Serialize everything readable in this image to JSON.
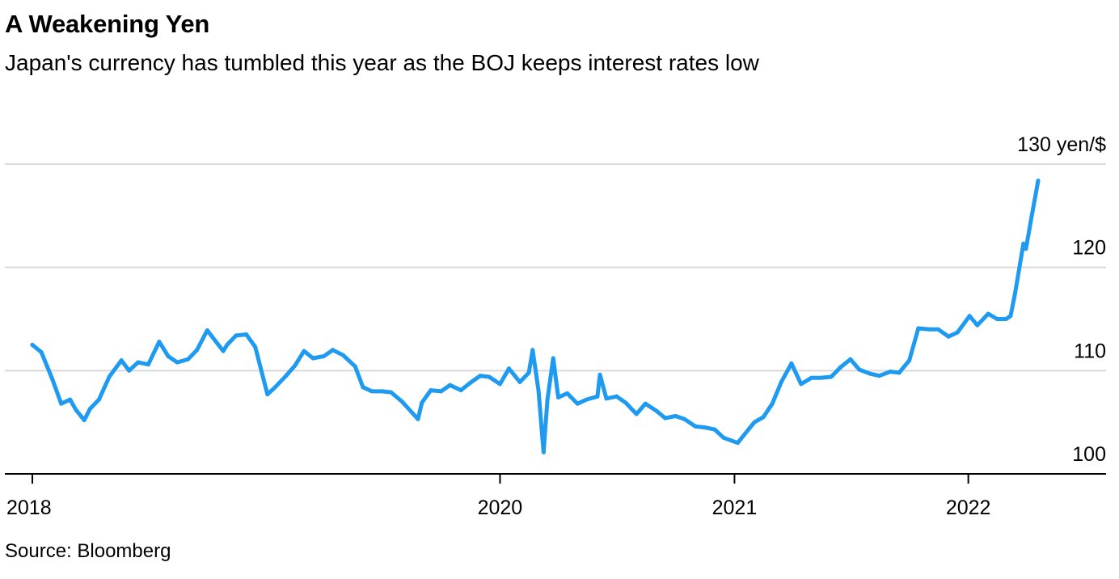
{
  "header": {
    "title": "A Weakening Yen",
    "subtitle": "Japan's currency has tumbled this year as the BOJ keeps interest rates low"
  },
  "footer": {
    "source": "Source: Bloomberg"
  },
  "colors": {
    "line": "#1e9bf0",
    "grid": "#d9d9d9",
    "axis": "#000000"
  },
  "chart_data": {
    "type": "line",
    "title": "A Weakening Yen",
    "subtitle": "Japan's currency has tumbled this year as the BOJ keeps interest rates low",
    "unit": "yen/$",
    "xlabel": "",
    "ylabel": "",
    "x_ticks": [
      {
        "label": "2018",
        "value": "2018-01-01"
      },
      {
        "label": "2020",
        "value": "2020-01-01"
      },
      {
        "label": "2021",
        "value": "2021-01-01"
      },
      {
        "label": "2022",
        "value": "2022-01-01"
      }
    ],
    "y_ticks": [
      {
        "label": "100",
        "value": 100
      },
      {
        "label": "110",
        "value": 110
      },
      {
        "label": "120",
        "value": 120
      },
      {
        "label": "130 yen/$",
        "value": 130
      }
    ],
    "ylim": [
      100,
      130
    ],
    "xlim": [
      "2018-01-01",
      "2022-04-20"
    ],
    "grid": true,
    "series": [
      {
        "x": [
          "2018-01-01",
          "2018-01-15",
          "2018-02-01",
          "2018-02-15",
          "2018-03-01",
          "2018-03-10",
          "2018-03-23",
          "2018-04-01",
          "2018-04-15",
          "2018-05-01",
          "2018-05-20",
          "2018-06-01",
          "2018-06-15",
          "2018-07-01",
          "2018-07-18",
          "2018-08-01",
          "2018-08-15",
          "2018-09-01",
          "2018-09-15",
          "2018-10-01",
          "2018-10-26",
          "2018-11-01",
          "2018-11-15",
          "2018-12-01",
          "2018-12-15",
          "2019-01-03",
          "2019-01-15",
          "2019-02-01",
          "2019-02-15",
          "2019-03-01",
          "2019-03-15",
          "2019-04-01",
          "2019-04-15",
          "2019-05-01",
          "2019-05-20",
          "2019-06-01",
          "2019-06-15",
          "2019-07-01",
          "2019-07-15",
          "2019-08-01",
          "2019-08-26",
          "2019-09-01",
          "2019-09-15",
          "2019-10-01",
          "2019-10-15",
          "2019-11-01",
          "2019-11-15",
          "2019-12-01",
          "2019-12-15",
          "2020-01-01",
          "2020-01-15",
          "2020-02-01",
          "2020-02-15",
          "2020-02-21",
          "2020-03-01",
          "2020-03-09",
          "2020-03-15",
          "2020-03-24",
          "2020-04-01",
          "2020-04-15",
          "2020-05-01",
          "2020-05-15",
          "2020-06-01",
          "2020-06-05",
          "2020-06-15",
          "2020-07-01",
          "2020-07-15",
          "2020-08-01",
          "2020-08-15",
          "2020-09-01",
          "2020-09-15",
          "2020-10-01",
          "2020-10-15",
          "2020-11-01",
          "2020-11-15",
          "2020-12-01",
          "2020-12-15",
          "2021-01-06",
          "2021-01-15",
          "2021-02-01",
          "2021-02-15",
          "2021-03-01",
          "2021-03-15",
          "2021-03-31",
          "2021-04-15",
          "2021-05-01",
          "2021-05-15",
          "2021-06-01",
          "2021-06-15",
          "2021-07-01",
          "2021-07-15",
          "2021-08-01",
          "2021-08-15",
          "2021-09-01",
          "2021-09-15",
          "2021-10-01",
          "2021-10-15",
          "2021-11-01",
          "2021-11-15",
          "2021-12-01",
          "2021-12-15",
          "2022-01-03",
          "2022-01-15",
          "2022-02-01",
          "2022-02-15",
          "2022-03-01",
          "2022-03-08",
          "2022-03-15",
          "2022-03-28",
          "2022-04-01",
          "2022-04-10",
          "2022-04-20"
        ],
        "values": [
          112.5,
          111.8,
          109.2,
          106.8,
          107.2,
          106.2,
          105.2,
          106.3,
          107.2,
          109.4,
          111.0,
          110.0,
          110.8,
          110.6,
          112.8,
          111.4,
          110.8,
          111.1,
          112.0,
          113.9,
          111.9,
          112.5,
          113.4,
          113.5,
          112.3,
          107.7,
          108.4,
          109.5,
          110.5,
          111.9,
          111.2,
          111.4,
          112.0,
          111.5,
          110.4,
          108.4,
          108.0,
          108.0,
          107.9,
          107.0,
          105.3,
          106.9,
          108.1,
          108.0,
          108.6,
          108.1,
          108.8,
          109.5,
          109.4,
          108.7,
          110.2,
          108.9,
          109.8,
          112.0,
          108.1,
          102.1,
          107.2,
          111.2,
          107.4,
          107.8,
          106.8,
          107.2,
          107.5,
          109.6,
          107.3,
          107.5,
          106.9,
          105.8,
          106.8,
          106.1,
          105.4,
          105.6,
          105.3,
          104.6,
          104.5,
          104.3,
          103.5,
          103.0,
          103.7,
          105.0,
          105.5,
          106.8,
          108.9,
          110.7,
          108.7,
          109.3,
          109.3,
          109.4,
          110.3,
          111.1,
          110.1,
          109.7,
          109.5,
          109.9,
          109.8,
          111.0,
          114.1,
          114.0,
          114.0,
          113.3,
          113.7,
          115.3,
          114.4,
          115.5,
          115.0,
          115.0,
          115.3,
          117.5,
          122.3,
          121.8,
          125.0,
          128.4
        ]
      }
    ]
  }
}
